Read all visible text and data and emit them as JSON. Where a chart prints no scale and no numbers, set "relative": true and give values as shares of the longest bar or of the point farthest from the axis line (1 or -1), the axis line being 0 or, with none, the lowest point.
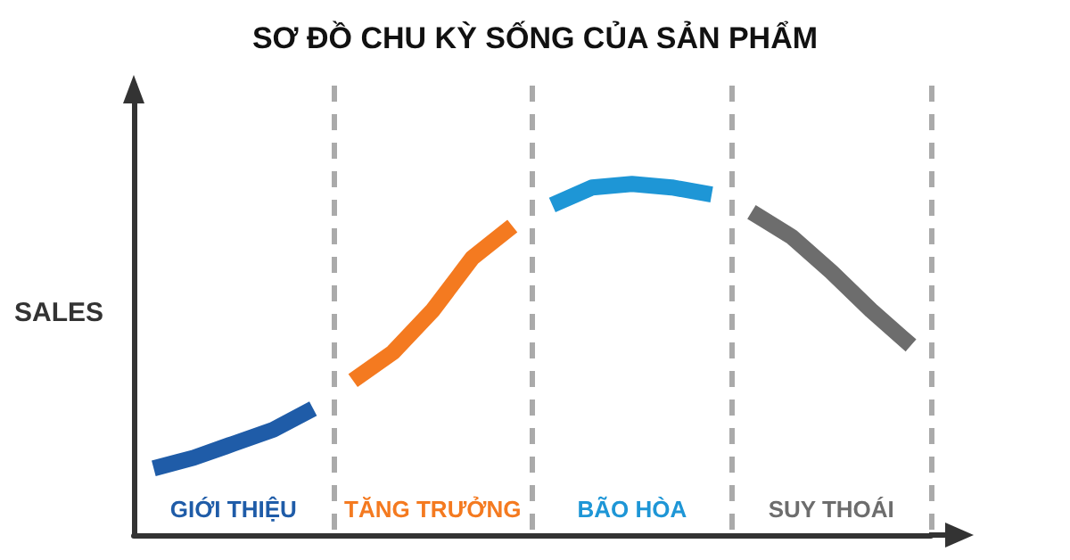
{
  "chart_data": {
    "type": "line",
    "title": "SƠ ĐỒ CHU KỲ SỐNG CỦA SẢN PHẨM",
    "ylabel": "SALES",
    "relative": true,
    "tick_labels": "x",
    "grid": "x",
    "marker": "none",
    "line_style": "solid",
    "categories": [
      null,
      null,
      "GIỚI THIỆU",
      null,
      null,
      null,
      null,
      "TĂNG TRƯỞNG",
      null,
      null,
      null,
      null,
      "BÃO HÒA",
      null,
      null,
      null,
      null,
      "SUY THOÁI",
      null,
      null
    ],
    "series": [
      {
        "color": "#1f5ca8",
        "values": [
          0.19,
          0.22,
          0.26,
          0.3,
          0.36,
          null,
          null,
          null,
          null,
          null,
          null,
          null,
          null,
          null,
          null,
          null,
          null,
          null,
          null,
          null
        ]
      },
      {
        "color": "#f47a20",
        "values": [
          null,
          null,
          null,
          null,
          null,
          0.44,
          0.52,
          0.64,
          0.79,
          0.88,
          null,
          null,
          null,
          null,
          null,
          null,
          null,
          null,
          null,
          null
        ]
      },
      {
        "color": "#1e96d6",
        "values": [
          null,
          null,
          null,
          null,
          null,
          null,
          null,
          null,
          null,
          null,
          0.94,
          0.99,
          1.0,
          0.99,
          0.97,
          null,
          null,
          null,
          null,
          null
        ]
      },
      {
        "color": "#6d6d6d",
        "values": [
          null,
          null,
          null,
          null,
          null,
          null,
          null,
          null,
          null,
          null,
          null,
          null,
          null,
          null,
          null,
          0.92,
          0.85,
          0.75,
          0.64,
          0.54
        ]
      }
    ]
  }
}
